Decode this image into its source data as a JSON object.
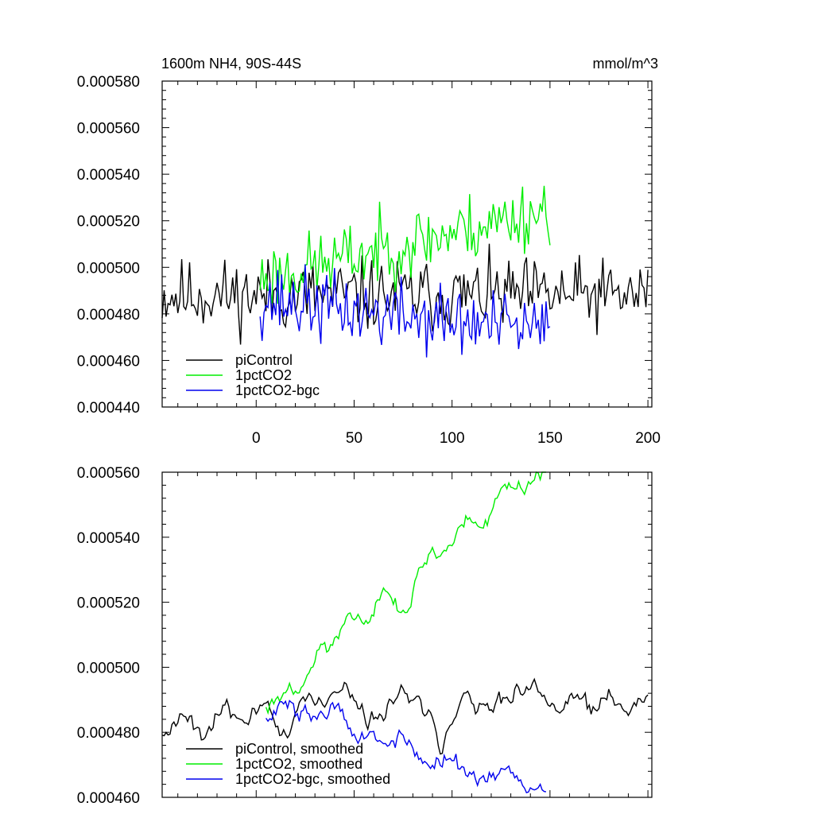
{
  "chart_data": [
    {
      "type": "line",
      "title_left": "1600m NH4, 90S-44S",
      "title_right": "mmol/m^3",
      "xlim": [
        -48,
        202
      ],
      "ylim": [
        0.00044,
        0.00058
      ],
      "x_ticks": [
        0,
        50,
        100,
        150,
        200
      ],
      "x_tick_labels": [
        "0",
        "50",
        "100",
        "150",
        "200"
      ],
      "y_ticks": [
        0.00044,
        0.00046,
        0.00048,
        0.0005,
        0.00052,
        0.00054,
        0.00056,
        0.00058
      ],
      "y_tick_labels": [
        "0.000440",
        "0.000460",
        "0.000480",
        "0.000500",
        "0.000520",
        "0.000540",
        "0.000560",
        "0.000580"
      ],
      "legend_position": "bottom-left",
      "series": [
        {
          "name": "piControl",
          "color": "#000000",
          "x_start": -48,
          "x_end": 200,
          "base": 0.000488,
          "amp": 1.45e-05,
          "trend": 0.0,
          "seed": 11,
          "smooth": 0
        },
        {
          "name": "1pctCO2",
          "color": "#00ee00",
          "x_start": 2,
          "x_end": 150,
          "base": 0.000495,
          "amp": 1.4e-05,
          "trend": 3e-05,
          "seed": 23,
          "smooth": 0
        },
        {
          "name": "1pctCO2-bgc",
          "color": "#0000ee",
          "x_start": 2,
          "x_end": 150,
          "base": 0.000486,
          "amp": 1.45e-05,
          "trend": -1.4e-05,
          "seed": 37,
          "smooth": 0
        }
      ]
    },
    {
      "type": "line",
      "xlim": [
        -48,
        202
      ],
      "ylim": [
        0.00046,
        0.00056
      ],
      "x_ticks": [
        0,
        50,
        100,
        150,
        200
      ],
      "y_ticks": [
        0.00046,
        0.00048,
        0.0005,
        0.00052,
        0.00054,
        0.00056
      ],
      "y_tick_labels": [
        "0.000460",
        "0.000480",
        "0.000500",
        "0.000520",
        "0.000540",
        "0.000560"
      ],
      "legend_position": "bottom-left",
      "series": [
        {
          "name": "piControl, smoothed",
          "color": "#000000",
          "x_start": -48,
          "x_end": 200,
          "base": 0.000486,
          "amp": 1.3e-05,
          "trend": 0.0,
          "seed": 11,
          "smooth": 5
        },
        {
          "name": "1pctCO2, smoothed",
          "color": "#00ee00",
          "x_start": 5,
          "x_end": 148,
          "base": 0.000489,
          "amp": 1.05e-05,
          "trend": 4e-05,
          "seed": 23,
          "smooth": 5
        },
        {
          "name": "1pctCO2-bgc, smoothed",
          "color": "#0000ee",
          "x_start": 5,
          "x_end": 148,
          "base": 0.000492,
          "amp": 1.2e-05,
          "trend": -1.8e-05,
          "seed": 37,
          "smooth": 5
        }
      ]
    }
  ]
}
